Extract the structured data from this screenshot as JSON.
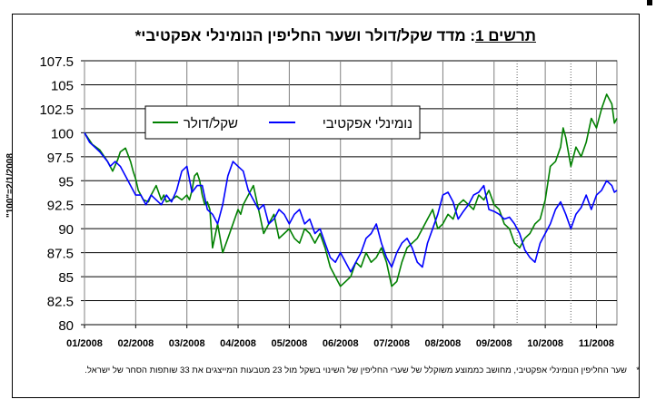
{
  "chart_data": {
    "type": "line",
    "title": {
      "label": "תרשים 1",
      "rest": ": מדד שקל/דולר ושער החליפין הנומינלי אפקטיבי*"
    },
    "ylabel": "\"100\"=2/1/2008",
    "ylim": [
      80,
      107.5
    ],
    "yticks": [
      "107.5",
      "105",
      "102.5",
      "100",
      "97.5",
      "95",
      "92.5",
      "90",
      "87.5",
      "85",
      "82.5",
      "80"
    ],
    "ytick_values": [
      107.5,
      105,
      102.5,
      100,
      97.5,
      95,
      92.5,
      90,
      87.5,
      85,
      82.5,
      80
    ],
    "xticks": [
      "01/2008",
      "02/2008",
      "03/2008",
      "04/2008",
      "05/2008",
      "06/2008",
      "07/2008",
      "08/2008",
      "09/2008",
      "10/2008",
      "11/2008"
    ],
    "xlim": [
      0,
      10.4
    ],
    "vlines_dotted": [
      8.45,
      9.5
    ],
    "grid": "horizontal",
    "legend_position": "upper-left",
    "series": [
      {
        "name": "שקל/דולר",
        "color": "#008000",
        "x": [
          0,
          0.15,
          0.3,
          0.45,
          0.5,
          0.55,
          0.65,
          0.7,
          0.8,
          0.9,
          0.95,
          1.0,
          1.05,
          1.1,
          1.15,
          1.25,
          1.3,
          1.4,
          1.5,
          1.55,
          1.6,
          1.7,
          1.8,
          1.9,
          2.0,
          2.05,
          2.1,
          2.15,
          2.2,
          2.25,
          2.3,
          2.35,
          2.4,
          2.45,
          2.5,
          2.6,
          2.7,
          2.8,
          2.9,
          3.0,
          3.05,
          3.1,
          3.2,
          3.3,
          3.4,
          3.5,
          3.6,
          3.7,
          3.8,
          3.9,
          4.0,
          4.1,
          4.2,
          4.3,
          4.4,
          4.5,
          4.6,
          4.7,
          4.8,
          4.9,
          5.0,
          5.1,
          5.2,
          5.3,
          5.4,
          5.5,
          5.6,
          5.7,
          5.8,
          5.9,
          6.0,
          6.1,
          6.2,
          6.3,
          6.4,
          6.5,
          6.6,
          6.7,
          6.8,
          6.9,
          7.0,
          7.1,
          7.2,
          7.3,
          7.4,
          7.5,
          7.6,
          7.7,
          7.8,
          7.9,
          8.0,
          8.1,
          8.2,
          8.3,
          8.4,
          8.5,
          8.6,
          8.7,
          8.8,
          8.9,
          9.0,
          9.1,
          9.2,
          9.3,
          9.35,
          9.4,
          9.5,
          9.6,
          9.7,
          9.8,
          9.9,
          10.0,
          10.1,
          10.2,
          10.3,
          10.35,
          10.4
        ],
        "values": [
          100,
          98.8,
          98.2,
          97,
          96.5,
          96,
          97.2,
          98,
          98.4,
          97,
          96,
          95.2,
          94,
          93.5,
          93,
          92.8,
          93.5,
          94.5,
          93,
          93.5,
          92.8,
          93,
          93.4,
          93,
          93.5,
          93,
          94,
          95.5,
          95.8,
          95,
          93.5,
          92.5,
          92.8,
          92,
          88,
          90.5,
          87.5,
          89,
          90.5,
          92,
          91.5,
          92.5,
          93.5,
          94.5,
          92,
          89.5,
          90.5,
          91.5,
          89,
          89.5,
          90,
          89,
          88.5,
          90,
          89.5,
          88.5,
          89.5,
          88,
          86,
          85,
          84,
          84.5,
          85,
          86.5,
          86,
          87.5,
          86.5,
          87,
          88,
          86.5,
          84,
          84.5,
          86.5,
          88,
          88.5,
          89,
          90,
          91,
          92,
          90,
          90.5,
          91.5,
          91,
          92.5,
          93,
          92.5,
          92,
          93.5,
          93,
          94,
          92.5,
          92,
          90.5,
          90,
          88.5,
          88,
          89,
          89.5,
          90.5,
          91,
          93,
          96.5,
          97,
          98.5,
          100.5,
          99.5,
          96.5,
          98.5,
          97.5,
          99,
          101.5,
          100.5,
          102.5,
          104,
          103,
          101,
          101.5
        ]
      },
      {
        "name": "נומינלי אפקטיבי",
        "color": "#0000ff",
        "x": [
          0,
          0.1,
          0.2,
          0.3,
          0.45,
          0.5,
          0.6,
          0.7,
          0.8,
          0.9,
          1.0,
          1.1,
          1.2,
          1.3,
          1.4,
          1.5,
          1.6,
          1.7,
          1.8,
          1.9,
          2.0,
          2.1,
          2.2,
          2.3,
          2.4,
          2.5,
          2.6,
          2.7,
          2.8,
          2.9,
          3.0,
          3.1,
          3.2,
          3.3,
          3.4,
          3.5,
          3.6,
          3.7,
          3.8,
          3.9,
          4.0,
          4.1,
          4.2,
          4.3,
          4.4,
          4.5,
          4.6,
          4.7,
          4.8,
          4.9,
          5.0,
          5.1,
          5.2,
          5.3,
          5.4,
          5.5,
          5.6,
          5.7,
          5.8,
          5.9,
          6.0,
          6.1,
          6.2,
          6.3,
          6.4,
          6.5,
          6.6,
          6.7,
          6.8,
          6.9,
          7.0,
          7.1,
          7.2,
          7.3,
          7.4,
          7.5,
          7.6,
          7.7,
          7.8,
          7.9,
          8.0,
          8.1,
          8.2,
          8.3,
          8.4,
          8.5,
          8.6,
          8.7,
          8.8,
          8.9,
          9.0,
          9.1,
          9.2,
          9.3,
          9.4,
          9.5,
          9.6,
          9.7,
          9.8,
          9.9,
          10.0,
          10.1,
          10.2,
          10.3,
          10.35,
          10.4
        ],
        "values": [
          100,
          99,
          98.5,
          98,
          97,
          96.5,
          97,
          96.5,
          95.5,
          94.5,
          93.5,
          93.5,
          92.5,
          93.5,
          93,
          92.5,
          93.5,
          92.8,
          94,
          96,
          96.5,
          93.8,
          94.5,
          94.5,
          92,
          91.5,
          90.5,
          92.5,
          95.5,
          97,
          96.5,
          96,
          94,
          93,
          92,
          92.5,
          90.5,
          91,
          92,
          91.5,
          90.5,
          91.5,
          92,
          90.5,
          91,
          89.5,
          90,
          88.5,
          87,
          86.5,
          87.5,
          86.5,
          85.5,
          86.5,
          87.5,
          89,
          89.5,
          90.5,
          88.5,
          87,
          86,
          87.5,
          88.5,
          89,
          88,
          86.5,
          86,
          88.5,
          90,
          91.5,
          93.5,
          93.8,
          92.8,
          91,
          91.8,
          92.5,
          93.5,
          93.8,
          94.5,
          92,
          91.8,
          91.5,
          91,
          91.2,
          90.5,
          89.5,
          87.8,
          87,
          86.5,
          88.5,
          89.5,
          90.5,
          92,
          92.8,
          91.5,
          90,
          91.5,
          92.2,
          93.5,
          92,
          93.5,
          94,
          95,
          94.5,
          93.8,
          94
        ]
      }
    ]
  },
  "footnote": "שער החליפין הנומינלי אפקטיבי, מחושב כממוצע משוקלל של שערי החליפין של השינוי בשקל מול 23 מטבעות המייצגים את 33 שותפות הסחר של ישראל.",
  "footnote_marker": "*"
}
